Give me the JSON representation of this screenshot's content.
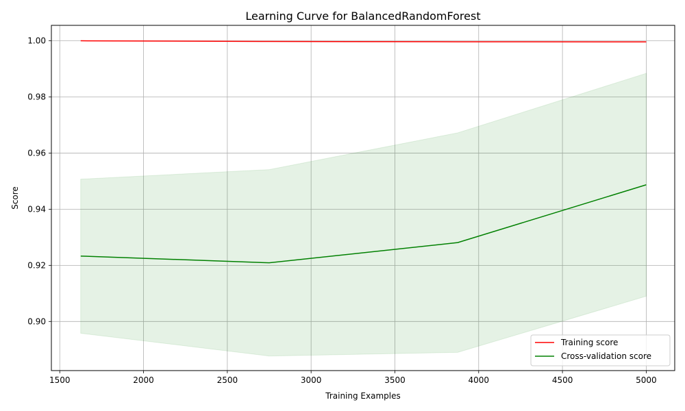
{
  "chart_data": {
    "type": "line",
    "title": "Learning Curve for BalancedRandomForest",
    "xlabel": "Training Examples",
    "ylabel": "Score",
    "xlim": [
      1450,
      5170
    ],
    "ylim": [
      0.8825,
      1.0055
    ],
    "xticks": [
      1500,
      2000,
      2500,
      3000,
      3500,
      4000,
      4500,
      5000
    ],
    "yticks": [
      0.9,
      0.92,
      0.94,
      0.96,
      0.98,
      1.0
    ],
    "xtick_labels": [
      "1500",
      "2000",
      "2500",
      "3000",
      "3500",
      "4000",
      "4500",
      "5000"
    ],
    "ytick_labels": [
      "0.90",
      "0.92",
      "0.94",
      "0.96",
      "0.98",
      "1.00"
    ],
    "grid": true,
    "legend_position": "lower-right",
    "x": [
      1625,
      2750,
      3875,
      5000
    ],
    "series": [
      {
        "name": "Training score",
        "color": "#ff0000",
        "values": [
          1.0,
          0.99975,
          0.99965,
          0.9996
        ],
        "band_lower": [
          1.0,
          0.99975,
          0.99965,
          0.9996
        ],
        "band_upper": [
          1.0,
          0.99975,
          0.99965,
          0.9996
        ]
      },
      {
        "name": "Cross-validation score",
        "color": "#008000",
        "values": [
          0.9233,
          0.9209,
          0.9281,
          0.9487
        ],
        "band_lower": [
          0.8958,
          0.8877,
          0.889,
          0.909
        ],
        "band_upper": [
          0.9507,
          0.9541,
          0.9672,
          0.9884
        ]
      }
    ]
  }
}
